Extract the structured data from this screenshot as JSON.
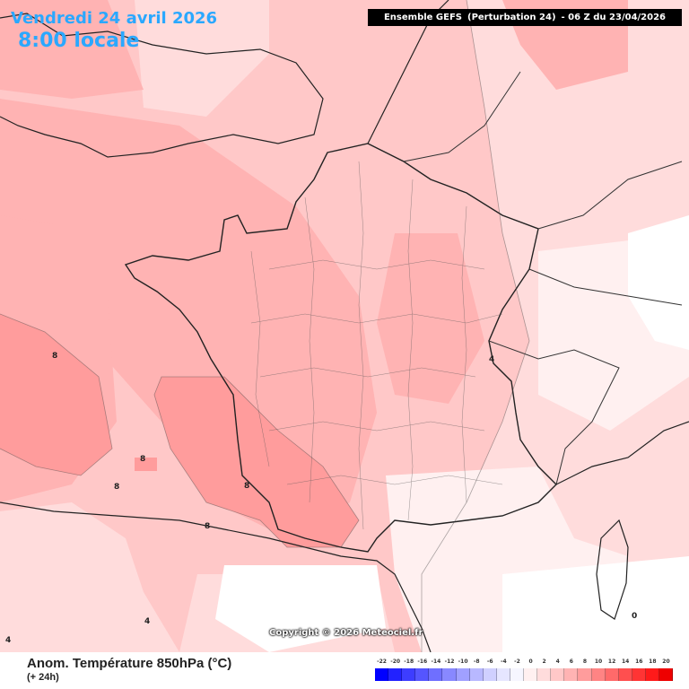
{
  "header": {
    "date": "Vendredi 24 avril 2026",
    "local_time": "8:00 locale",
    "model": "Ensemble GEFS",
    "member": "(Perturbation 24)",
    "run": "-  06 Z du 23/04/2026"
  },
  "variable": {
    "title": "Anom. Température 850hPa (°C)",
    "lead": "(+ 24h)"
  },
  "copyright": "Copyright © 2026 Meteociel.fr",
  "legend": {
    "ticks": [
      "-22",
      "-20",
      "-18",
      "-16",
      "-14",
      "-12",
      "-10",
      "-8",
      "-6",
      "-4",
      "-2",
      "0",
      "2",
      "4",
      "6",
      "8",
      "10",
      "12",
      "14",
      "16",
      "18",
      "20"
    ],
    "colors": [
      "#0000ff",
      "#2222ff",
      "#3d3dff",
      "#5555ff",
      "#6f6fff",
      "#8888ff",
      "#a0a0ff",
      "#b8b8ff",
      "#d0d0ff",
      "#e6e6ff",
      "#f6f6ff",
      "#fff0f0",
      "#ffdcdc",
      "#ffc8c8",
      "#ffb3b3",
      "#ff9c9c",
      "#ff8484",
      "#ff6a6a",
      "#ff4f4f",
      "#ff3434",
      "#ff1a1a",
      "#ee0000"
    ]
  },
  "contour_labels": [
    "8",
    "8",
    "8",
    "8",
    "8",
    "4",
    "0",
    "4",
    "4"
  ],
  "colors": {
    "title_blue": "#2aa8ff",
    "anomaly_0_2": "#fff0f0",
    "anomaly_2_4": "#ffdcdc",
    "anomaly_4_6": "#ffc8c8",
    "anomaly_6_8": "#ffb3b3",
    "anomaly_8_10": "#ff9c9c"
  }
}
